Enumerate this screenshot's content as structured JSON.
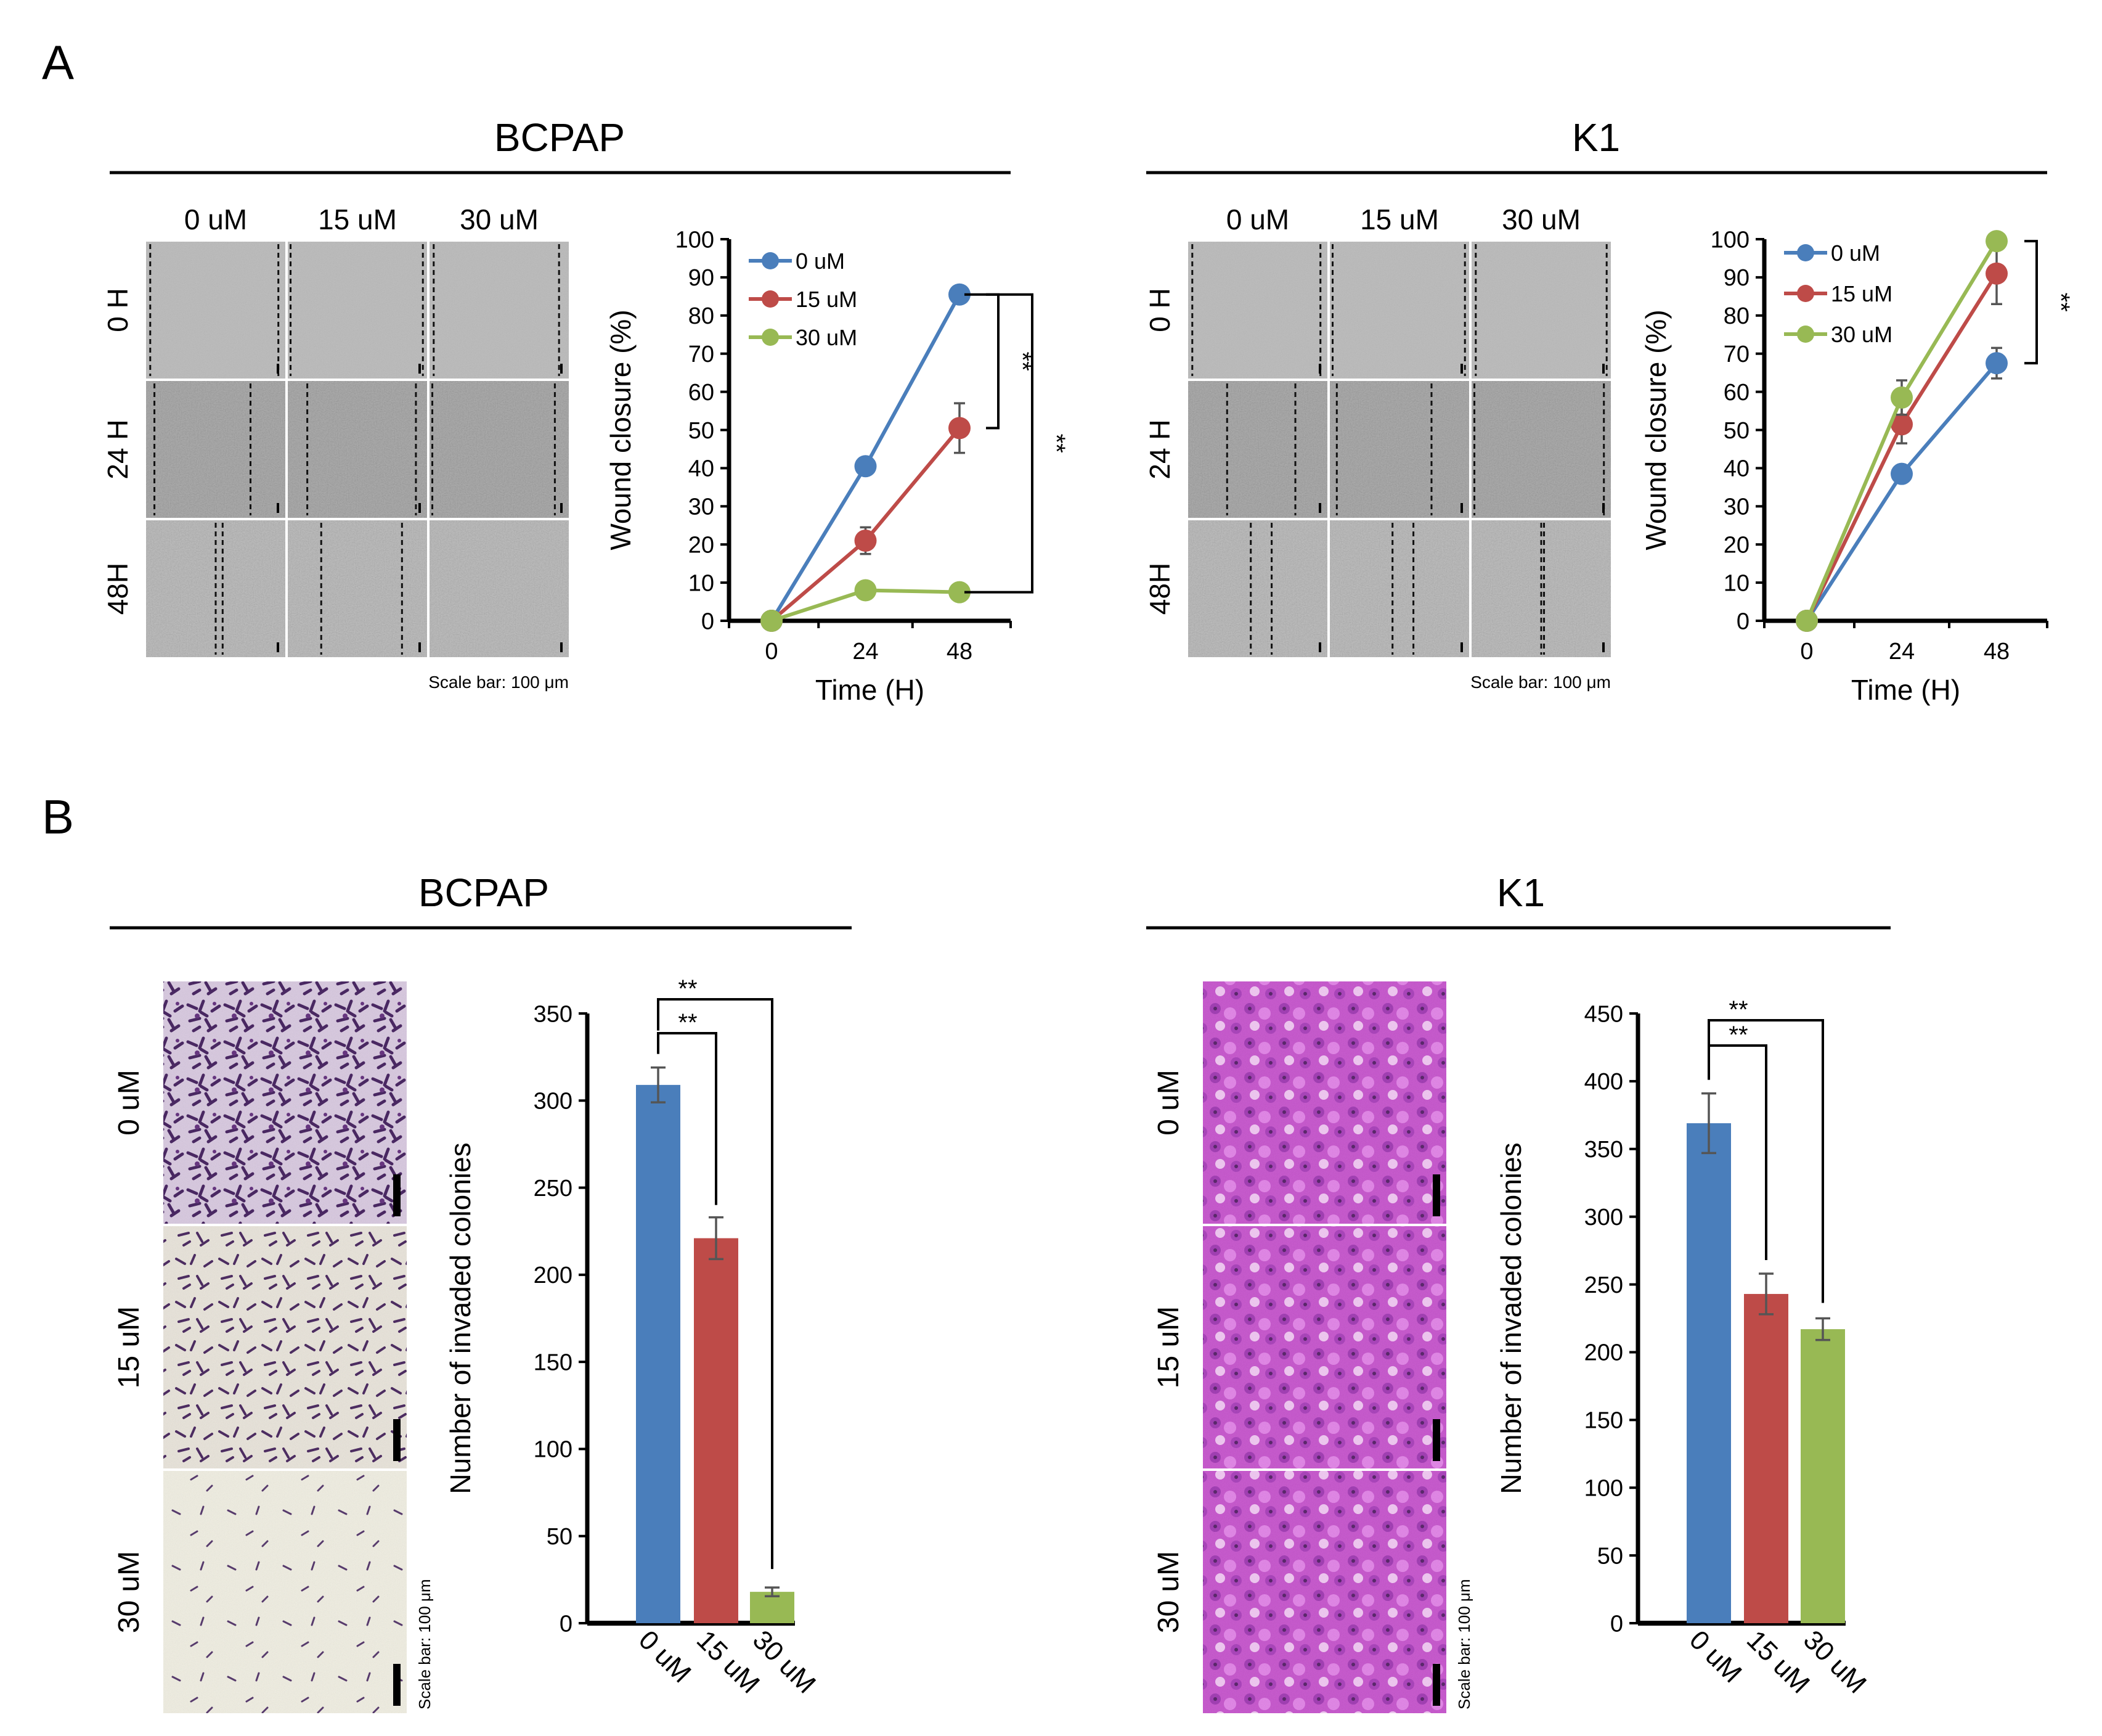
{
  "figure": {
    "panels": [
      {
        "label": "A",
        "groups": [
          {
            "cell_line": "BCPAP",
            "micrograph": {
              "column_labels": [
                "0 uM",
                "15 uM",
                "30 uM"
              ],
              "row_labels": [
                "0 H",
                "24 H",
                "48H"
              ],
              "scale_bar_text": "Scale bar: 100 μm"
            }
          },
          {
            "cell_line": "K1",
            "micrograph": {
              "column_labels": [
                "0 uM",
                "15 uM",
                "30 uM"
              ],
              "row_labels": [
                "0 H",
                "24 H",
                "48H"
              ],
              "scale_bar_text": "Scale bar: 100 μm"
            }
          }
        ]
      },
      {
        "label": "B",
        "groups": [
          {
            "cell_line": "BCPAP",
            "micrograph": {
              "row_labels": [
                "0 uM",
                "15 uM",
                "30 uM"
              ],
              "scale_bar_text": "Scale bar: 100 μm"
            }
          },
          {
            "cell_line": "K1",
            "micrograph": {
              "row_labels": [
                "0 uM",
                "15 uM",
                "30 uM"
              ],
              "scale_bar_text": "Scale bar: 100 μm"
            }
          }
        ]
      }
    ]
  },
  "colors": {
    "blue": "#4A7EBB",
    "red": "#BE4B48",
    "green": "#98B954"
  },
  "chart_data": [
    {
      "id": "A-BCPAP",
      "type": "line",
      "title": "",
      "xlabel": "Time (H)",
      "ylabel": "Wound closure (%)",
      "x": [
        0,
        24,
        48
      ],
      "xticks": [
        "0",
        "24",
        "48"
      ],
      "ylim": [
        0,
        100
      ],
      "ystep": 10,
      "legend": "top-left",
      "series": [
        {
          "name": "0 uM",
          "color": "#4A7EBB",
          "values": [
            0,
            40.5,
            85.5
          ],
          "errors": [
            0,
            0,
            2
          ]
        },
        {
          "name": "15 uM",
          "color": "#BE4B48",
          "values": [
            0,
            21,
            50.5
          ],
          "errors": [
            0,
            3.5,
            6.5
          ]
        },
        {
          "name": "30 uM",
          "color": "#98B954",
          "values": [
            0,
            8,
            7.5
          ],
          "errors": [
            0,
            0,
            0
          ]
        }
      ],
      "annotations": [
        {
          "text": "**",
          "between": [
            "0 uM",
            "15 uM"
          ]
        },
        {
          "text": "**",
          "between": [
            "0 uM",
            "30 uM"
          ]
        }
      ]
    },
    {
      "id": "A-K1",
      "type": "line",
      "title": "",
      "xlabel": "Time (H)",
      "ylabel": "Wound closure (%)",
      "x": [
        0,
        24,
        48
      ],
      "xticks": [
        "0",
        "24",
        "48"
      ],
      "ylim": [
        0,
        100
      ],
      "ystep": 10,
      "legend": "top-left",
      "series": [
        {
          "name": "0 uM",
          "color": "#4A7EBB",
          "values": [
            0,
            38.5,
            67.5
          ],
          "errors": [
            0,
            0,
            4
          ]
        },
        {
          "name": "15 uM",
          "color": "#BE4B48",
          "values": [
            0,
            51.5,
            91
          ],
          "errors": [
            0,
            5,
            8
          ]
        },
        {
          "name": "30 uM",
          "color": "#98B954",
          "values": [
            0,
            58.5,
            99.5
          ],
          "errors": [
            0,
            4.5,
            0
          ]
        }
      ],
      "annotations": [
        {
          "text": "**",
          "between": [
            "0 uM",
            "30 uM"
          ]
        }
      ]
    },
    {
      "id": "B-BCPAP",
      "type": "bar",
      "title": "",
      "xlabel": "",
      "ylabel": "Number of invaded colonies",
      "categories": [
        "0 uM",
        "15 uM",
        "30 uM"
      ],
      "values": [
        309,
        221,
        18
      ],
      "errors": [
        10,
        12,
        2.5
      ],
      "colors": [
        "#4A7EBB",
        "#BE4B48",
        "#98B954"
      ],
      "ylim": [
        0,
        350
      ],
      "ystep": 50,
      "annotations": [
        {
          "text": "**",
          "between": [
            "0 uM",
            "15 uM"
          ]
        },
        {
          "text": "**",
          "between": [
            "0 uM",
            "30 uM"
          ]
        }
      ]
    },
    {
      "id": "B-K1",
      "type": "bar",
      "title": "",
      "xlabel": "",
      "ylabel": "Number of invaded colonies",
      "categories": [
        "0 uM",
        "15 uM",
        "30 uM"
      ],
      "values": [
        369,
        243,
        217
      ],
      "errors": [
        22,
        15,
        8
      ],
      "colors": [
        "#4A7EBB",
        "#BE4B48",
        "#98B954"
      ],
      "ylim": [
        0,
        450
      ],
      "ystep": 50,
      "annotations": [
        {
          "text": "**",
          "between": [
            "0 uM",
            "15 uM"
          ]
        },
        {
          "text": "**",
          "between": [
            "0 uM",
            "30 uM"
          ]
        }
      ]
    }
  ]
}
